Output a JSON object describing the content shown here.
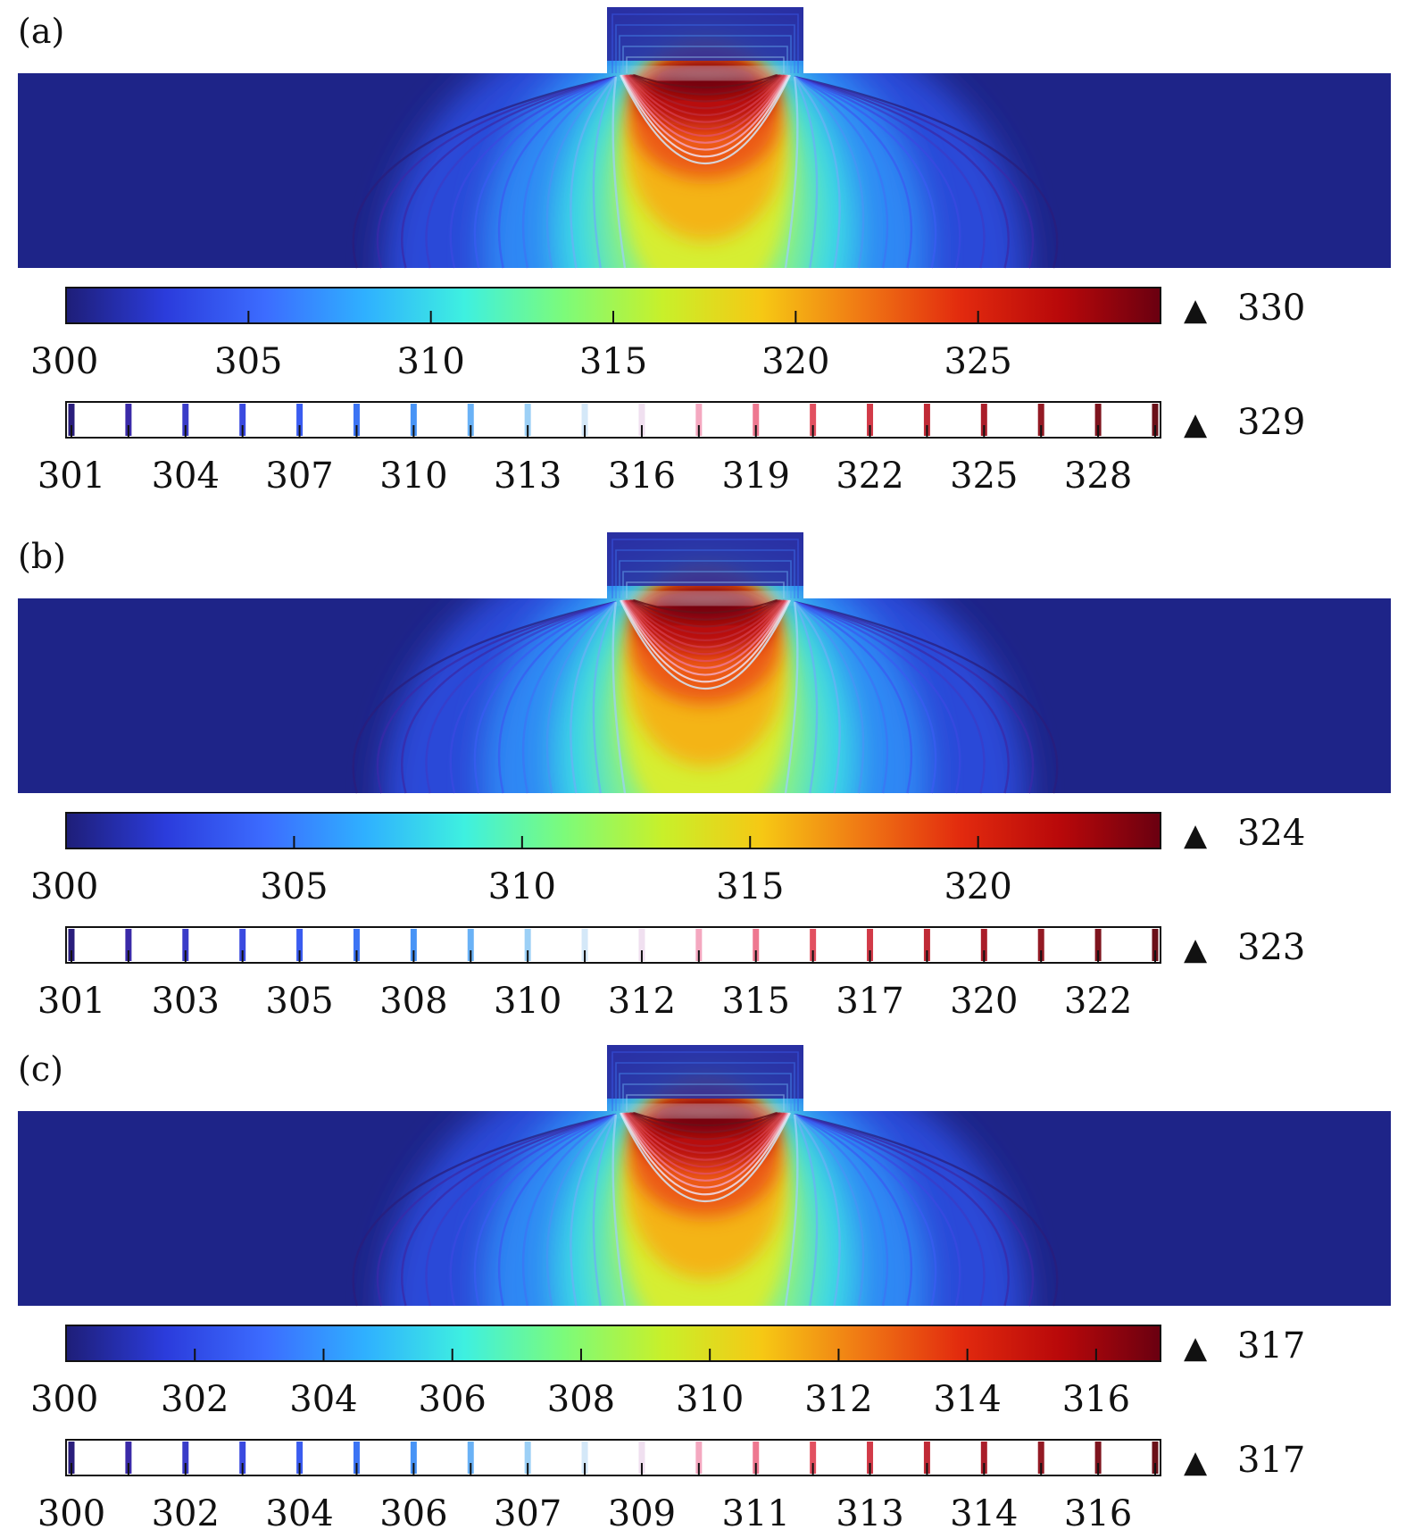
{
  "panels": [
    {
      "label": "(a)",
      "colorbar": {
        "ticks": [
          "300",
          "305",
          "310",
          "315",
          "320",
          "325"
        ],
        "max": "330"
      },
      "contour_legend": {
        "ticks": [
          "301",
          "304",
          "307",
          "310",
          "313",
          "316",
          "319",
          "322",
          "325",
          "328"
        ],
        "max": "329"
      }
    },
    {
      "label": "(b)",
      "colorbar": {
        "ticks": [
          "300",
          "305",
          "310",
          "315",
          "320"
        ],
        "max": "324"
      },
      "contour_legend": {
        "ticks": [
          "301",
          "303",
          "305",
          "308",
          "310",
          "312",
          "315",
          "317",
          "320",
          "322"
        ],
        "max": "323"
      }
    },
    {
      "label": "(c)",
      "colorbar": {
        "ticks": [
          "300",
          "302",
          "304",
          "306",
          "308",
          "310",
          "312",
          "314",
          "316"
        ],
        "max": "317"
      },
      "contour_legend": {
        "ticks": [
          "300",
          "302",
          "304",
          "306",
          "307",
          "309",
          "311",
          "313",
          "314",
          "316"
        ],
        "max": "317"
      }
    }
  ],
  "max_marker": "▲",
  "colormap": [
    "#1e1e78",
    "#2b3cdc",
    "#3c6cff",
    "#2fb0ff",
    "#3ef0e0",
    "#7cfb7a",
    "#c8f02a",
    "#f6c814",
    "#f07814",
    "#e22a0e",
    "#b8080a",
    "#6a0010"
  ],
  "contour_colors": [
    "#2a1e7c",
    "#3a2aa8",
    "#3a3cc8",
    "#3a4ae0",
    "#3a5cf0",
    "#3c74f4",
    "#4894f6",
    "#6ab2f6",
    "#9cd0f6",
    "#d4e8f8",
    "#f0e0f0",
    "#f4a8c0",
    "#ee7890",
    "#e25060",
    "#d23a48",
    "#c02a36",
    "#aa1e2a",
    "#941a24",
    "#7e141e",
    "#6a1018"
  ]
}
